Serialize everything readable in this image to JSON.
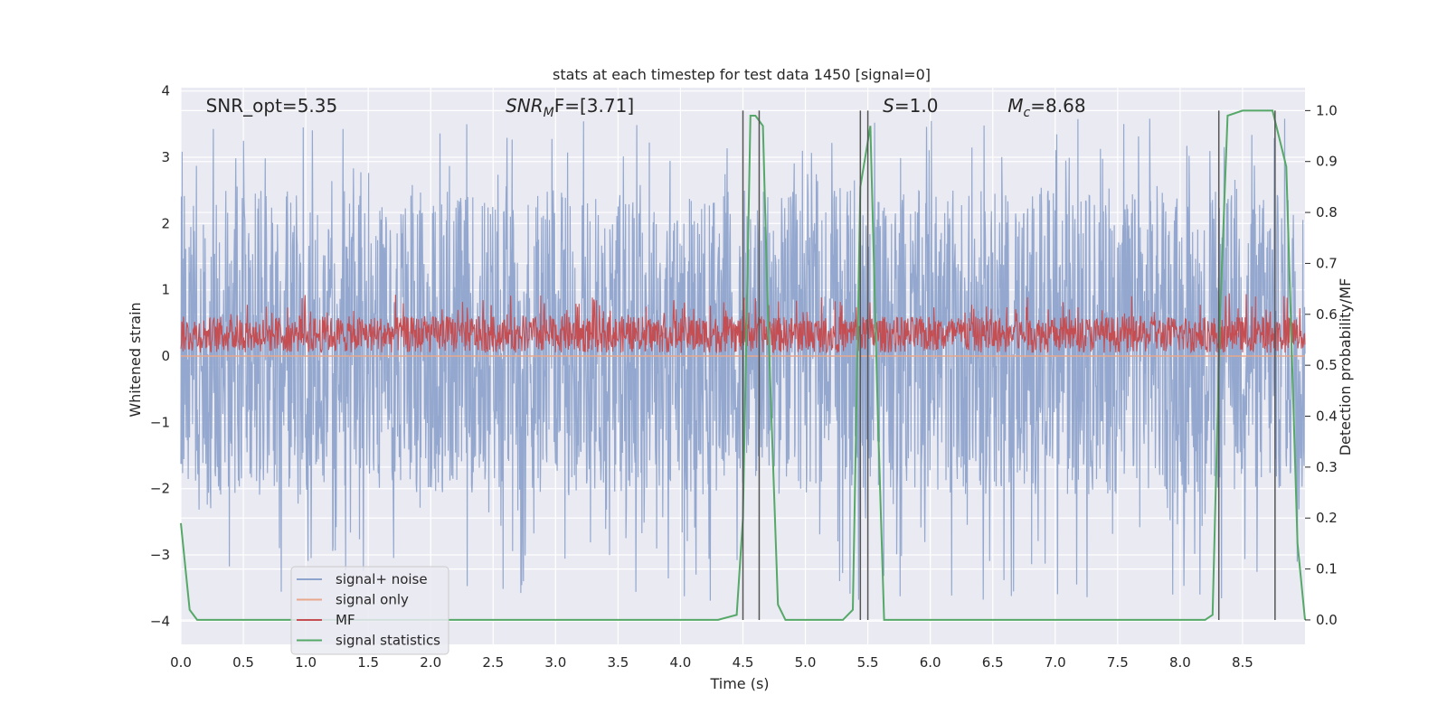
{
  "chart_data": {
    "type": "line",
    "title": "stats at each timestep for test data 1450 [signal=0]",
    "xlabel": "Time (s)",
    "ylabel": "Whitened strain",
    "y2label": "Detection probability/MF",
    "xlim": [
      0.0,
      9.0
    ],
    "ylim": [
      -4.35,
      4.05
    ],
    "y2lim": [
      -0.048,
      1.045
    ],
    "xticks": [
      0.0,
      0.5,
      1.0,
      1.5,
      2.0,
      2.5,
      3.0,
      3.5,
      4.0,
      4.5,
      5.0,
      5.5,
      6.0,
      6.5,
      7.0,
      7.5,
      8.0,
      8.5
    ],
    "xtick_labels": [
      "0.0",
      "0.5",
      "1.0",
      "1.5",
      "2.0",
      "2.5",
      "3.0",
      "3.5",
      "4.0",
      "4.5",
      "5.0",
      "5.5",
      "6.0",
      "6.5",
      "7.0",
      "7.5",
      "8.0",
      "8.5"
    ],
    "yticks": [
      4,
      3,
      2,
      1,
      0,
      -1,
      -2,
      -3,
      -4
    ],
    "ytick_labels": [
      "4",
      "3",
      "2",
      "1",
      "0",
      "−1",
      "−2",
      "−3",
      "−4"
    ],
    "y2ticks": [
      1.0,
      0.9,
      0.8,
      0.7,
      0.6,
      0.5,
      0.4,
      0.3,
      0.2,
      0.1,
      0.0
    ],
    "y2tick_labels": [
      "1.0",
      "0.9",
      "0.8",
      "0.7",
      "0.6",
      "0.5",
      "0.4",
      "0.3",
      "0.2",
      "0.1",
      "0.0"
    ],
    "annotations": [
      {
        "text": "SNR_opt=5.35",
        "x": 0.2
      },
      {
        "text": "SNR",
        "sub": "M",
        "rest": "F=[3.71]",
        "x": 2.6,
        "italic_prefix": true
      },
      {
        "text": "S",
        "rest": "=1.0",
        "x": 5.62,
        "italic_prefix": true
      },
      {
        "text": "M",
        "sub": "c",
        "rest": "=8.68",
        "x": 6.62,
        "italic_prefix": true
      }
    ],
    "legend": {
      "placement": "lower-left",
      "entries": [
        {
          "label": "signal+ noise",
          "color": "#8fa4cc"
        },
        {
          "label": "signal only",
          "color": "#e8a88c"
        },
        {
          "label": "MF",
          "color": "#c44e52"
        },
        {
          "label": "signal statistics",
          "color": "#55a868"
        }
      ]
    },
    "series": [
      {
        "name": "signal+ noise",
        "axis": "left",
        "color": "#8fa4cc",
        "style": "dense noise, band approx -2.6 to 3.0 with spikes to about +/-4",
        "x_range": [
          0.0,
          9.0
        ]
      },
      {
        "name": "signal only",
        "axis": "left",
        "color": "#e8a88c",
        "x_range": [
          0.0,
          9.0
        ],
        "values_constant": 0.0
      },
      {
        "name": "MF",
        "axis": "left",
        "color": "#c44e52",
        "style": "dense noise, band approx 0.0 to 0.8",
        "x_range": [
          0.0,
          9.0
        ]
      },
      {
        "name": "signal statistics",
        "axis": "right",
        "color": "#55a868",
        "x": [
          0.0,
          0.07,
          0.13,
          0.2,
          4.3,
          4.45,
          4.5,
          4.56,
          4.6,
          4.66,
          4.7,
          4.78,
          4.84,
          4.95,
          5.3,
          5.38,
          5.44,
          5.52,
          5.58,
          5.63,
          6.0,
          8.2,
          8.26,
          8.32,
          8.38,
          8.5,
          8.74,
          8.78,
          8.85,
          8.94,
          9.0
        ],
        "y": [
          0.19,
          0.02,
          0.0,
          0.0,
          0.0,
          0.01,
          0.2,
          0.99,
          0.99,
          0.97,
          0.6,
          0.03,
          0.0,
          0.0,
          0.0,
          0.02,
          0.85,
          0.97,
          0.4,
          0.0,
          0.0,
          0.0,
          0.01,
          0.6,
          0.99,
          1.0,
          1.0,
          0.96,
          0.89,
          0.15,
          0.0
        ]
      }
    ],
    "vertical_lines": [
      4.5,
      4.63,
      5.44,
      5.5,
      8.31,
      8.76
    ]
  }
}
